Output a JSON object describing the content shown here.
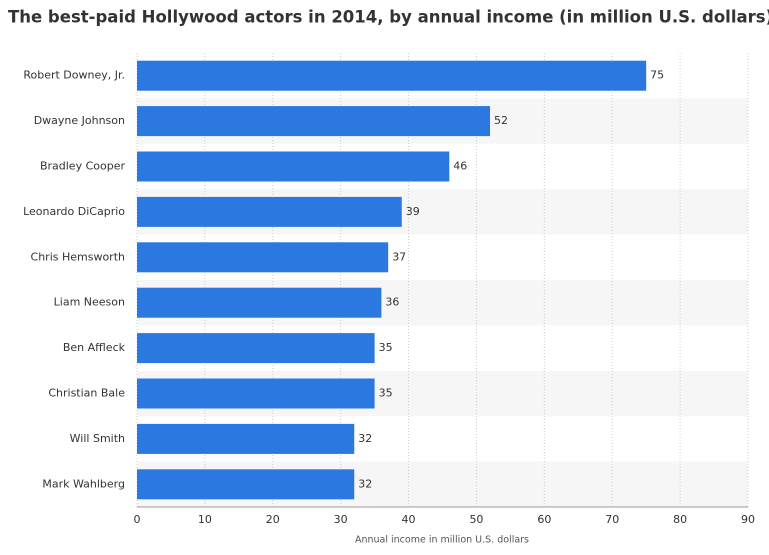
{
  "chart_data": {
    "type": "bar",
    "orientation": "horizontal",
    "title": "The best-paid Hollywood actors in 2014, by annual income (in million U.S. dollars)",
    "x_label": "Annual income in million U.S. dollars",
    "categories": [
      "Robert Downey, Jr.",
      "Dwayne Johnson",
      "Bradley Cooper",
      "Leonardo DiCaprio",
      "Chris Hemsworth",
      "Liam Neeson",
      "Ben Affleck",
      "Christian Bale",
      "Will Smith",
      "Mark Wahlberg"
    ],
    "values": [
      75,
      52,
      46,
      39,
      37,
      36,
      35,
      35,
      32,
      32
    ],
    "color": "#2a78e0",
    "xlim": [
      0,
      90
    ],
    "xticks": [
      0,
      10,
      20,
      30,
      40,
      50,
      60,
      70,
      80,
      90
    ],
    "grid": true
  }
}
